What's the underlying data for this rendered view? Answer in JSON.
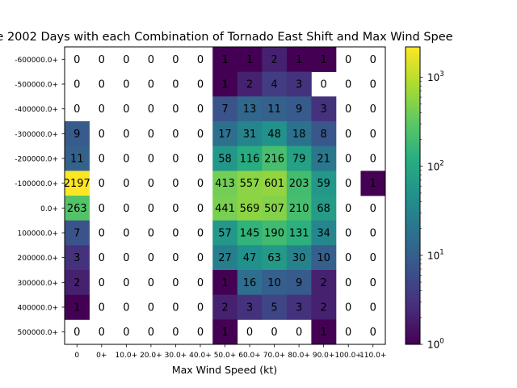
{
  "chart_data": {
    "type": "heatmap",
    "title": "e 2002 Days with each Combination of Tornado East Shift and Max Wind Spee",
    "xlabel": "Max Wind Speed (kt)",
    "ylabel": "",
    "x_categories": [
      "0",
      "0+",
      "10.0+",
      "20.0+",
      "30.0+",
      "40.0+",
      "50.0+",
      "60.0+",
      "70.0+",
      "80.0+",
      "90.0+",
      "100.0+",
      "110.0+"
    ],
    "y_categories": [
      "-600000.0+",
      "-500000.0+",
      "-400000.0+",
      "-300000.0+",
      "-200000.0+",
      "-100000.0+",
      "0.0+",
      "100000.0+",
      "200000.0+",
      "300000.0+",
      "400000.0+",
      "500000.0+"
    ],
    "values": [
      [
        0,
        0,
        0,
        0,
        0,
        0,
        1,
        1,
        2,
        1,
        1,
        0,
        0
      ],
      [
        0,
        0,
        0,
        0,
        0,
        0,
        1,
        2,
        4,
        3,
        0,
        0,
        0
      ],
      [
        0,
        0,
        0,
        0,
        0,
        0,
        7,
        13,
        11,
        9,
        3,
        0,
        0
      ],
      [
        9,
        0,
        0,
        0,
        0,
        0,
        17,
        31,
        48,
        18,
        8,
        0,
        0
      ],
      [
        11,
        0,
        0,
        0,
        0,
        0,
        58,
        116,
        216,
        79,
        21,
        0,
        0
      ],
      [
        2197,
        0,
        0,
        0,
        0,
        0,
        413,
        557,
        601,
        203,
        59,
        0,
        1
      ],
      [
        263,
        0,
        0,
        0,
        0,
        0,
        441,
        569,
        507,
        210,
        68,
        0,
        0
      ],
      [
        7,
        0,
        0,
        0,
        0,
        0,
        57,
        145,
        190,
        131,
        34,
        0,
        0
      ],
      [
        3,
        0,
        0,
        0,
        0,
        0,
        27,
        47,
        63,
        30,
        10,
        0,
        0
      ],
      [
        2,
        0,
        0,
        0,
        0,
        0,
        1,
        16,
        10,
        9,
        2,
        0,
        0
      ],
      [
        1,
        0,
        0,
        0,
        0,
        0,
        2,
        3,
        5,
        3,
        2,
        0,
        0
      ],
      [
        0,
        0,
        0,
        0,
        0,
        0,
        1,
        0,
        0,
        0,
        1,
        0,
        0
      ]
    ],
    "colorbar": {
      "scale": "log",
      "colormap": "viridis",
      "vmin": 1,
      "vmax": 2197,
      "tick_labels": [
        "10^0",
        "10^1",
        "10^2",
        "10^3"
      ],
      "tick_values": [
        1,
        10,
        100,
        1000
      ]
    },
    "grid": false
  }
}
